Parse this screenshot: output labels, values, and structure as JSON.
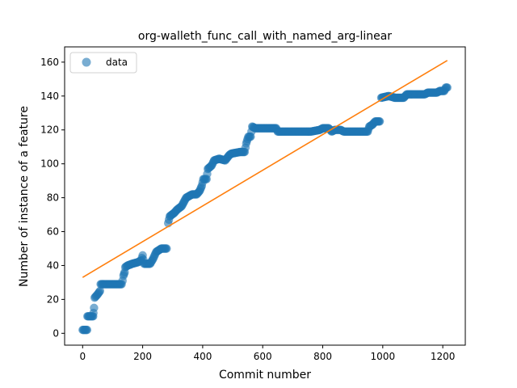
{
  "chart_data": {
    "type": "scatter",
    "title": "org-walleth_func_call_with_named_arg-linear",
    "xlabel": "Commit number",
    "ylabel": "Number of instance of a feature",
    "xlim": [
      -60,
      1275
    ],
    "ylim": [
      -7,
      169
    ],
    "xticks": [
      0,
      200,
      400,
      600,
      800,
      1000,
      1200
    ],
    "yticks": [
      0,
      20,
      40,
      60,
      80,
      100,
      120,
      140,
      160
    ],
    "grid": false,
    "legend": {
      "position": "top-left",
      "entries": [
        "data"
      ]
    },
    "colors": {
      "data": "#1f77b4",
      "fit": "#ff7f0e"
    },
    "series": [
      {
        "name": "data",
        "style": "markers",
        "segments": [
          [
            [
              0,
              2
            ],
            [
              15,
              2
            ],
            [
              16,
              10
            ],
            [
              35,
              10
            ],
            [
              36,
              12
            ],
            [
              38,
              15
            ],
            [
              40,
              21
            ],
            [
              50,
              23
            ],
            [
              58,
              25
            ],
            [
              60,
              29
            ],
            [
              130,
              29
            ],
            [
              133,
              31
            ],
            [
              136,
              34
            ],
            [
              140,
              36
            ],
            [
              142,
              39
            ],
            [
              150,
              40
            ],
            [
              165,
              41
            ],
            [
              185,
              42
            ],
            [
              195,
              43
            ],
            [
              200,
              46
            ],
            [
              205,
              41
            ],
            [
              225,
              41
            ],
            [
              235,
              44
            ],
            [
              245,
              48
            ],
            [
              262,
              50
            ],
            [
              280,
              50
            ]
          ],
          [
            [
              285,
              65
            ],
            [
              290,
              69
            ],
            [
              305,
              71
            ],
            [
              315,
              73
            ],
            [
              330,
              75
            ],
            [
              345,
              80
            ],
            [
              365,
              82
            ],
            [
              380,
              82
            ],
            [
              390,
              84
            ],
            [
              397,
              87
            ],
            [
              402,
              91
            ],
            [
              413,
              91
            ],
            [
              417,
              97
            ],
            [
              430,
              99
            ],
            [
              438,
              102
            ],
            [
              455,
              103
            ],
            [
              475,
              102
            ],
            [
              488,
              105
            ],
            [
              495,
              106
            ],
            [
              525,
              107
            ],
            [
              540,
              107
            ],
            [
              545,
              112
            ],
            [
              552,
              116
            ],
            [
              560,
              116
            ],
            [
              565,
              122
            ],
            [
              575,
              121
            ],
            [
              645,
              121
            ],
            [
              650,
              119
            ],
            [
              695,
              119
            ],
            [
              760,
              119
            ],
            [
              790,
              120
            ],
            [
              800,
              121
            ],
            [
              820,
              121
            ],
            [
              830,
              119
            ],
            [
              840,
              120
            ],
            [
              860,
              120
            ],
            [
              870,
              119
            ],
            [
              950,
              119
            ],
            [
              955,
              122
            ],
            [
              965,
              123
            ],
            [
              975,
              125
            ],
            [
              990,
              125
            ]
          ],
          [
            [
              995,
              139
            ],
            [
              1020,
              140
            ],
            [
              1040,
              139
            ],
            [
              1070,
              139
            ],
            [
              1080,
              141
            ],
            [
              1140,
              141
            ],
            [
              1150,
              142
            ],
            [
              1180,
              142
            ],
            [
              1190,
              143
            ],
            [
              1205,
              143
            ],
            [
              1210,
              145
            ],
            [
              1215,
              145
            ]
          ]
        ]
      },
      {
        "name": "fit",
        "style": "line",
        "x": [
          0,
          1215
        ],
        "y": [
          33,
          161
        ]
      }
    ]
  }
}
